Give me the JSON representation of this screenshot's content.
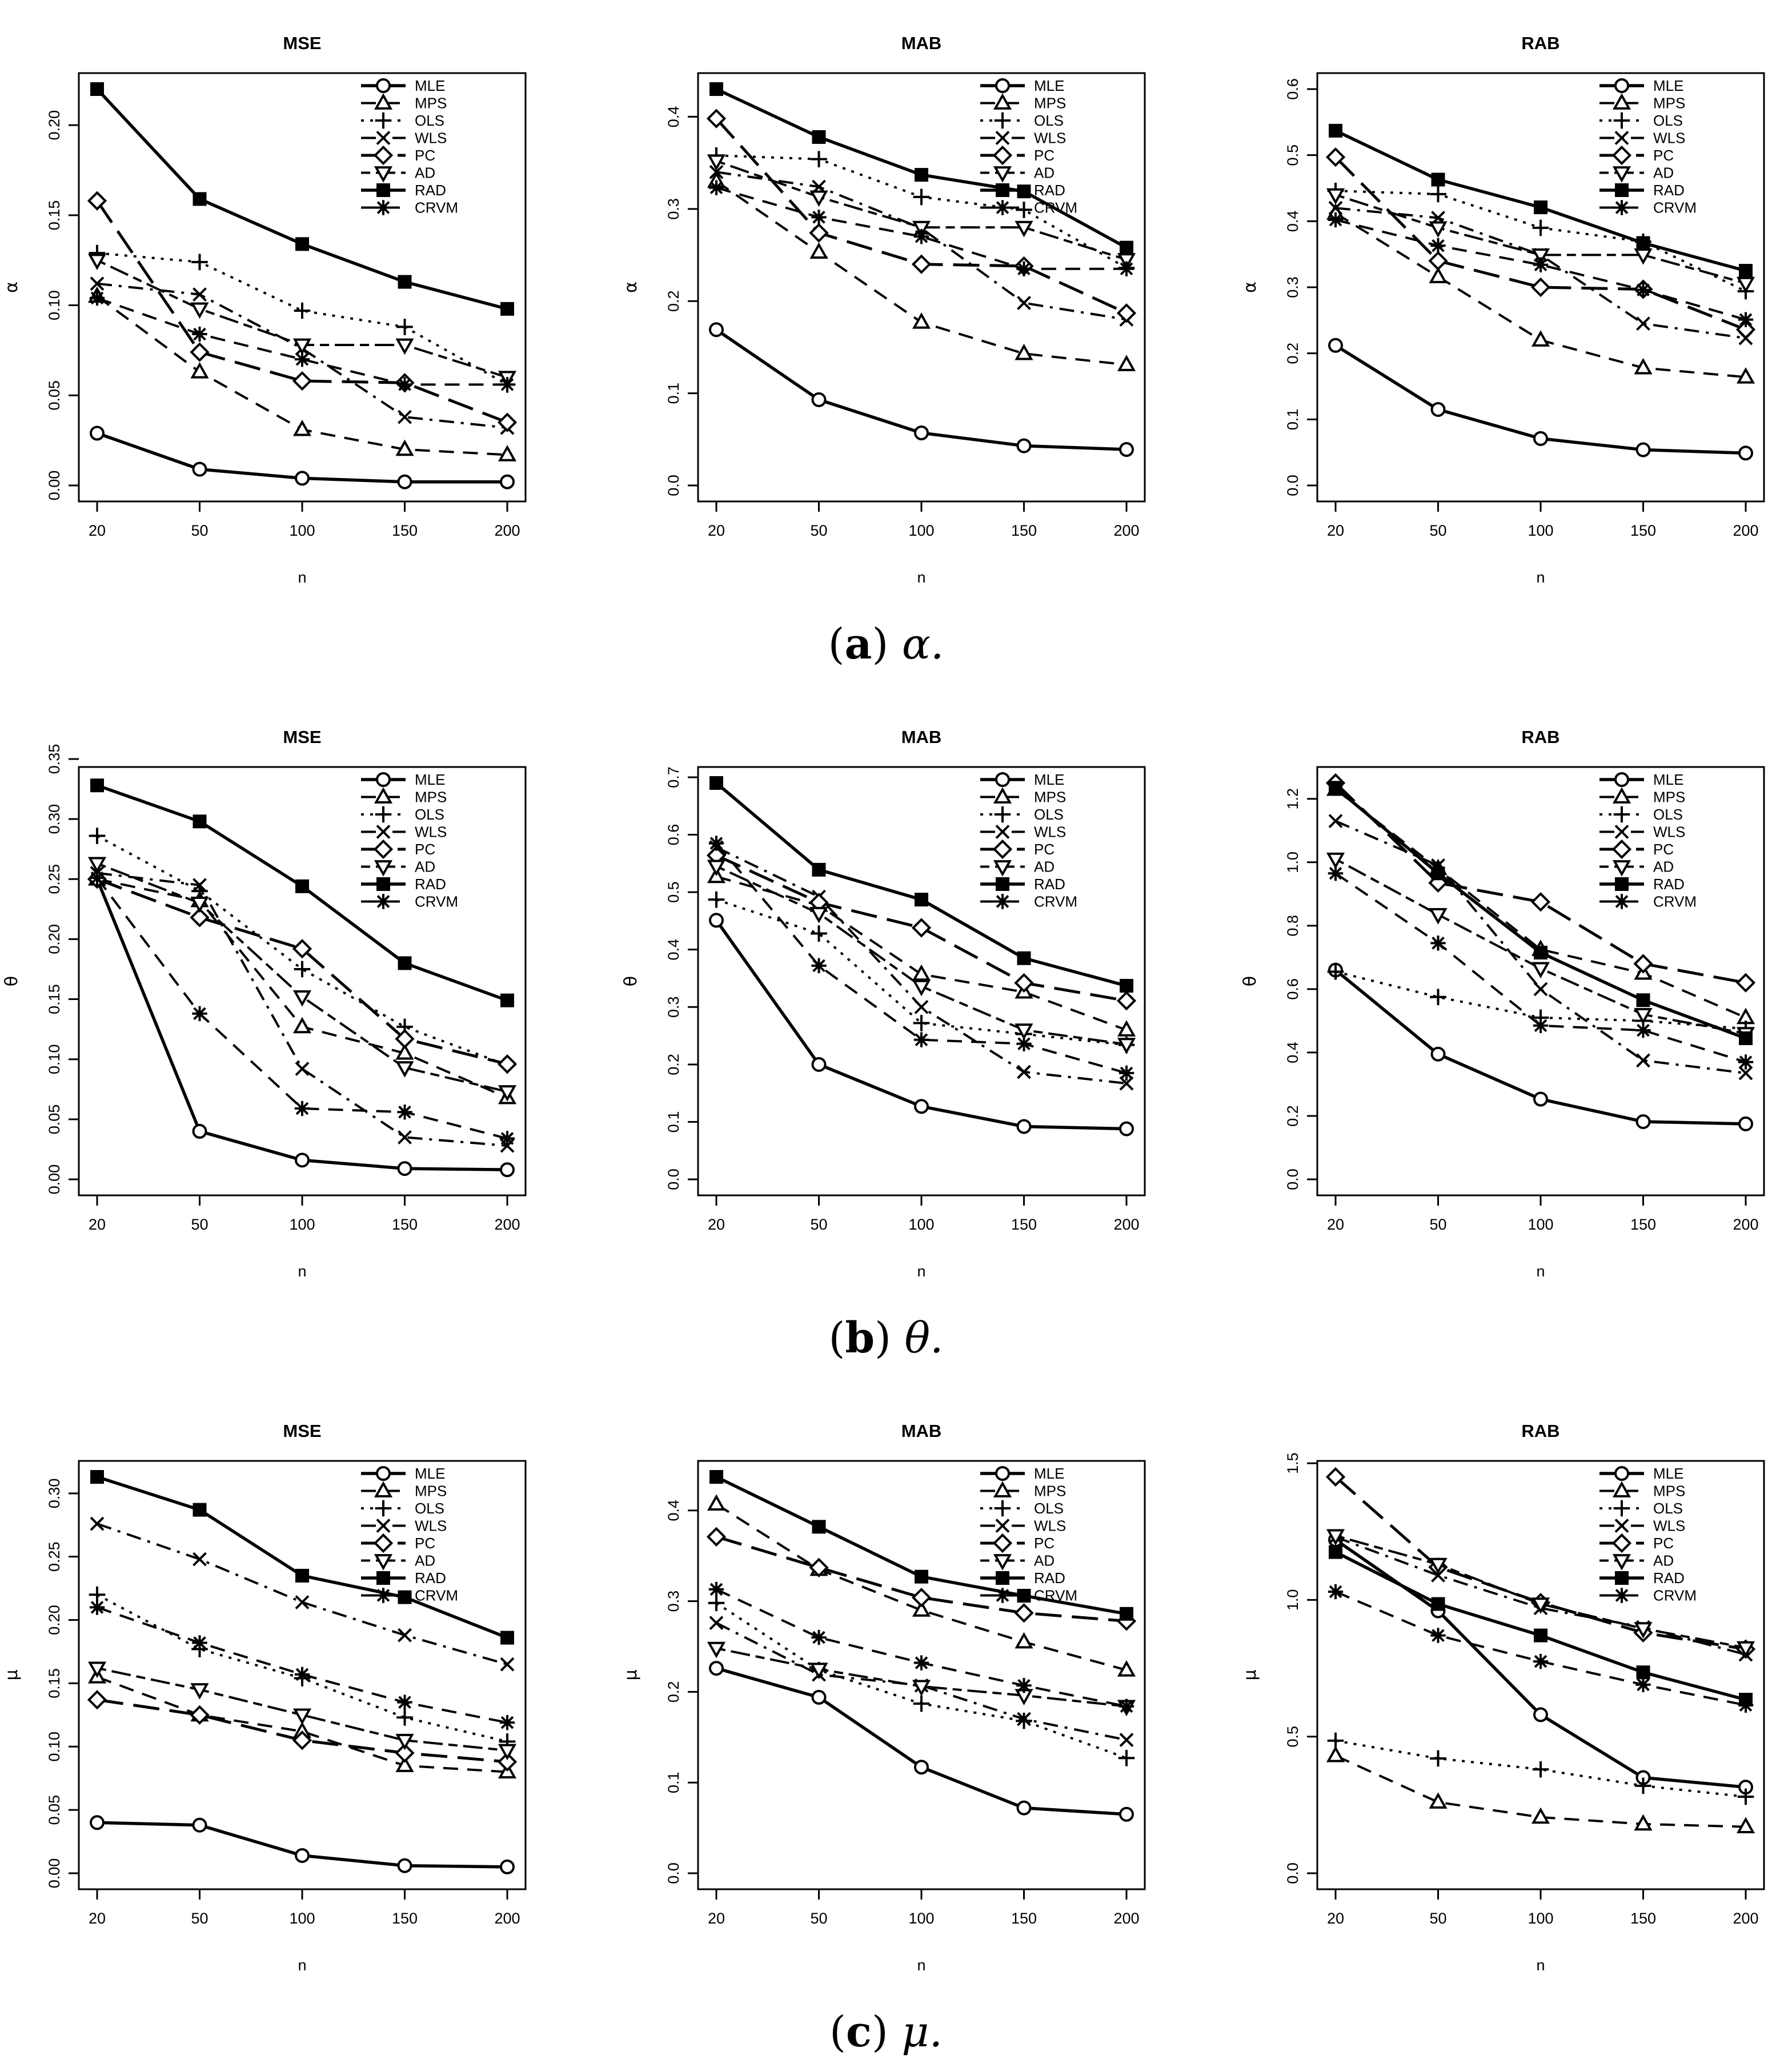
{
  "captions": [
    {
      "letter": "a",
      "symbol": "α."
    },
    {
      "letter": "b",
      "symbol": "θ."
    },
    {
      "letter": "c",
      "symbol": "μ."
    }
  ],
  "legend": [
    "MLE",
    "MPS",
    "OLS",
    "WLS",
    "PC",
    "AD",
    "RAD",
    "CRVM"
  ],
  "series_style": {
    "MLE": {
      "marker": "circle",
      "dash": "solid",
      "width": 5.5
    },
    "MPS": {
      "marker": "triangle",
      "dash": "dashed",
      "width": 4
    },
    "OLS": {
      "marker": "plus",
      "dash": "dotted",
      "width": 4
    },
    "WLS": {
      "marker": "cross",
      "dash": "dashdot",
      "width": 4
    },
    "PC": {
      "marker": "diamond",
      "dash": "longdash",
      "width": 5
    },
    "AD": {
      "marker": "triangle-down",
      "dash": "twodash",
      "width": 4
    },
    "RAD": {
      "marker": "square",
      "dash": "solid",
      "width": 5.5
    },
    "CRVM": {
      "marker": "asterisk",
      "dash": "dashed",
      "width": 4
    }
  },
  "chart_data": [
    {
      "type": "line",
      "title": "MSE",
      "xlabel": "n",
      "ylabel": "α",
      "x": [
        20,
        50,
        100,
        150,
        200
      ],
      "ylim": [
        0,
        0.22
      ],
      "yticks": [
        "0.00",
        "0.05",
        "0.10",
        "0.15",
        "0.20"
      ],
      "ytick_values": [
        0,
        0.05,
        0.1,
        0.15,
        0.2
      ],
      "series": [
        {
          "name": "MLE",
          "values": [
            0.029,
            0.009,
            0.004,
            0.002,
            0.002
          ]
        },
        {
          "name": "MPS",
          "values": [
            0.105,
            0.063,
            0.031,
            0.02,
            0.017
          ]
        },
        {
          "name": "OLS",
          "values": [
            0.129,
            0.124,
            0.097,
            0.088,
            0.056
          ]
        },
        {
          "name": "WLS",
          "values": [
            0.112,
            0.106,
            0.076,
            0.038,
            0.032
          ]
        },
        {
          "name": "PC",
          "values": [
            0.158,
            0.074,
            0.058,
            0.057,
            0.035
          ]
        },
        {
          "name": "AD",
          "values": [
            0.125,
            0.098,
            0.078,
            0.078,
            0.06
          ]
        },
        {
          "name": "RAD",
          "values": [
            0.22,
            0.159,
            0.134,
            0.113,
            0.098
          ]
        },
        {
          "name": "CRVM",
          "values": [
            0.104,
            0.084,
            0.07,
            0.056,
            0.056
          ]
        }
      ]
    },
    {
      "type": "line",
      "title": "MAB",
      "xlabel": "n",
      "ylabel": "α",
      "x": [
        20,
        50,
        100,
        150,
        200
      ],
      "ylim": [
        0,
        0.43
      ],
      "yticks": [
        "0.0",
        "0.1",
        "0.2",
        "0.3",
        "0.4"
      ],
      "ytick_values": [
        0,
        0.1,
        0.2,
        0.3,
        0.4
      ],
      "series": [
        {
          "name": "MLE",
          "values": [
            0.169,
            0.093,
            0.057,
            0.043,
            0.039
          ]
        },
        {
          "name": "MPS",
          "values": [
            0.33,
            0.253,
            0.177,
            0.143,
            0.131
          ]
        },
        {
          "name": "OLS",
          "values": [
            0.358,
            0.354,
            0.313,
            0.299,
            0.236
          ]
        },
        {
          "name": "WLS",
          "values": [
            0.34,
            0.324,
            0.279,
            0.198,
            0.18
          ]
        },
        {
          "name": "PC",
          "values": [
            0.398,
            0.274,
            0.24,
            0.238,
            0.187
          ]
        },
        {
          "name": "AD",
          "values": [
            0.352,
            0.313,
            0.28,
            0.28,
            0.245
          ]
        },
        {
          "name": "RAD",
          "values": [
            0.43,
            0.378,
            0.337,
            0.319,
            0.258
          ]
        },
        {
          "name": "CRVM",
          "values": [
            0.323,
            0.291,
            0.27,
            0.235,
            0.235
          ]
        }
      ]
    },
    {
      "type": "line",
      "title": "RAB",
      "xlabel": "n",
      "ylabel": "α",
      "x": [
        20,
        50,
        100,
        150,
        200
      ],
      "ylim": [
        0,
        0.6
      ],
      "yticks": [
        "0.0",
        "0.1",
        "0.2",
        "0.3",
        "0.4",
        "0.5",
        "0.6"
      ],
      "ytick_values": [
        0,
        0.1,
        0.2,
        0.3,
        0.4,
        0.5,
        0.6
      ],
      "series": [
        {
          "name": "MLE",
          "values": [
            0.212,
            0.115,
            0.071,
            0.054,
            0.049
          ]
        },
        {
          "name": "MPS",
          "values": [
            0.412,
            0.316,
            0.22,
            0.178,
            0.164
          ]
        },
        {
          "name": "OLS",
          "values": [
            0.446,
            0.441,
            0.39,
            0.369,
            0.294
          ]
        },
        {
          "name": "WLS",
          "values": [
            0.42,
            0.405,
            0.349,
            0.245,
            0.223
          ]
        },
        {
          "name": "PC",
          "values": [
            0.497,
            0.34,
            0.3,
            0.297,
            0.236
          ]
        },
        {
          "name": "AD",
          "values": [
            0.44,
            0.39,
            0.349,
            0.349,
            0.306
          ]
        },
        {
          "name": "RAD",
          "values": [
            0.537,
            0.463,
            0.421,
            0.367,
            0.325
          ]
        },
        {
          "name": "CRVM",
          "values": [
            0.402,
            0.363,
            0.334,
            0.296,
            0.251
          ]
        }
      ]
    },
    {
      "type": "line",
      "title": "MSE",
      "xlabel": "n",
      "ylabel": "θ",
      "x": [
        20,
        50,
        100,
        150,
        200
      ],
      "ylim": [
        0,
        0.33
      ],
      "yticks": [
        "0.00",
        "0.05",
        "0.10",
        "0.15",
        "0.20",
        "0.25",
        "0.30",
        "0.35"
      ],
      "ytick_values": [
        0,
        0.05,
        0.1,
        0.15,
        0.2,
        0.25,
        0.3,
        0.35
      ],
      "series": [
        {
          "name": "MLE",
          "values": [
            0.25,
            0.04,
            0.016,
            0.009,
            0.008
          ]
        },
        {
          "name": "MPS",
          "values": [
            0.25,
            0.232,
            0.127,
            0.105,
            0.068
          ]
        },
        {
          "name": "OLS",
          "values": [
            0.286,
            0.24,
            0.175,
            0.127,
            0.095
          ]
        },
        {
          "name": "WLS",
          "values": [
            0.255,
            0.245,
            0.092,
            0.035,
            0.028
          ]
        },
        {
          "name": "PC",
          "values": [
            0.25,
            0.218,
            0.192,
            0.117,
            0.096
          ]
        },
        {
          "name": "AD",
          "values": [
            0.263,
            0.23,
            0.152,
            0.093,
            0.073
          ]
        },
        {
          "name": "RAD",
          "values": [
            0.328,
            0.298,
            0.244,
            0.18,
            0.149
          ]
        },
        {
          "name": "CRVM",
          "values": [
            0.251,
            0.138,
            0.059,
            0.056,
            0.034
          ]
        }
      ]
    },
    {
      "type": "line",
      "title": "MAB",
      "xlabel": "n",
      "ylabel": "θ",
      "x": [
        20,
        50,
        100,
        150,
        200
      ],
      "ylim": [
        0,
        0.69
      ],
      "yticks": [
        "0.0",
        "0.1",
        "0.2",
        "0.3",
        "0.4",
        "0.5",
        "0.6",
        "0.7"
      ],
      "ytick_values": [
        0,
        0.1,
        0.2,
        0.3,
        0.4,
        0.5,
        0.6,
        0.7
      ],
      "series": [
        {
          "name": "MLE",
          "values": [
            0.451,
            0.2,
            0.127,
            0.092,
            0.088
          ]
        },
        {
          "name": "MPS",
          "values": [
            0.527,
            0.477,
            0.357,
            0.326,
            0.26
          ]
        },
        {
          "name": "OLS",
          "values": [
            0.487,
            0.428,
            0.272,
            0.253,
            0.234
          ]
        },
        {
          "name": "WLS",
          "values": [
            0.578,
            0.492,
            0.3,
            0.187,
            0.167
          ]
        },
        {
          "name": "PC",
          "values": [
            0.564,
            0.482,
            0.438,
            0.342,
            0.311
          ]
        },
        {
          "name": "AD",
          "values": [
            0.545,
            0.463,
            0.336,
            0.26,
            0.235
          ]
        },
        {
          "name": "RAD",
          "values": [
            0.69,
            0.539,
            0.487,
            0.385,
            0.337
          ]
        },
        {
          "name": "CRVM",
          "values": [
            0.585,
            0.372,
            0.243,
            0.236,
            0.185
          ]
        }
      ]
    },
    {
      "type": "line",
      "title": "RAB",
      "xlabel": "n",
      "ylabel": "θ",
      "x": [
        20,
        50,
        100,
        150,
        200
      ],
      "ylim": [
        0,
        1.25
      ],
      "yticks": [
        "0.0",
        "0.2",
        "0.4",
        "0.6",
        "0.8",
        "1.0",
        "1.2"
      ],
      "ytick_values": [
        0,
        0.2,
        0.4,
        0.6,
        0.8,
        1.0,
        1.2
      ],
      "series": [
        {
          "name": "MLE",
          "values": [
            0.66,
            0.395,
            0.253,
            0.182,
            0.175
          ]
        },
        {
          "name": "MPS",
          "values": [
            1.23,
            0.98,
            0.725,
            0.65,
            0.51
          ]
        },
        {
          "name": "OLS",
          "values": [
            0.655,
            0.575,
            0.51,
            0.5,
            0.475
          ]
        },
        {
          "name": "WLS",
          "values": [
            1.13,
            0.99,
            0.6,
            0.375,
            0.335
          ]
        },
        {
          "name": "PC",
          "values": [
            1.25,
            0.935,
            0.875,
            0.68,
            0.62
          ]
        },
        {
          "name": "AD",
          "values": [
            1.01,
            0.835,
            0.665,
            0.52,
            0.46
          ]
        },
        {
          "name": "RAD",
          "values": [
            1.235,
            0.965,
            0.715,
            0.565,
            0.445
          ]
        },
        {
          "name": "CRVM",
          "values": [
            0.965,
            0.745,
            0.485,
            0.47,
            0.37
          ]
        }
      ]
    },
    {
      "type": "line",
      "title": "MSE",
      "xlabel": "n",
      "ylabel": "μ",
      "x": [
        20,
        50,
        100,
        150,
        200
      ],
      "ylim": [
        0,
        0.313
      ],
      "yticks": [
        "0.00",
        "0.05",
        "0.10",
        "0.15",
        "0.20",
        "0.25",
        "0.30"
      ],
      "ytick_values": [
        0,
        0.05,
        0.1,
        0.15,
        0.2,
        0.25,
        0.3
      ],
      "series": [
        {
          "name": "MLE",
          "values": [
            0.04,
            0.038,
            0.014,
            0.006,
            0.005
          ]
        },
        {
          "name": "MPS",
          "values": [
            0.155,
            0.125,
            0.112,
            0.085,
            0.08
          ]
        },
        {
          "name": "OLS",
          "values": [
            0.22,
            0.177,
            0.154,
            0.123,
            0.104
          ]
        },
        {
          "name": "WLS",
          "values": [
            0.276,
            0.248,
            0.214,
            0.188,
            0.165
          ]
        },
        {
          "name": "PC",
          "values": [
            0.137,
            0.125,
            0.105,
            0.095,
            0.088
          ]
        },
        {
          "name": "AD",
          "values": [
            0.162,
            0.145,
            0.125,
            0.105,
            0.097
          ]
        },
        {
          "name": "RAD",
          "values": [
            0.313,
            0.287,
            0.235,
            0.218,
            0.186
          ]
        },
        {
          "name": "CRVM",
          "values": [
            0.21,
            0.182,
            0.157,
            0.135,
            0.119
          ]
        }
      ]
    },
    {
      "type": "line",
      "title": "MAB",
      "xlabel": "n",
      "ylabel": "μ",
      "x": [
        20,
        50,
        100,
        150,
        200
      ],
      "ylim": [
        0,
        0.437
      ],
      "yticks": [
        "0.0",
        "0.1",
        "0.2",
        "0.3",
        "0.4"
      ],
      "ytick_values": [
        0,
        0.1,
        0.2,
        0.3,
        0.4
      ],
      "series": [
        {
          "name": "MLE",
          "values": [
            0.226,
            0.194,
            0.117,
            0.072,
            0.065
          ]
        },
        {
          "name": "MPS",
          "values": [
            0.407,
            0.335,
            0.29,
            0.255,
            0.224
          ]
        },
        {
          "name": "OLS",
          "values": [
            0.298,
            0.224,
            0.187,
            0.168,
            0.127
          ]
        },
        {
          "name": "WLS",
          "values": [
            0.276,
            0.219,
            0.207,
            0.17,
            0.147
          ]
        },
        {
          "name": "PC",
          "values": [
            0.371,
            0.337,
            0.304,
            0.287,
            0.278
          ]
        },
        {
          "name": "AD",
          "values": [
            0.248,
            0.225,
            0.206,
            0.196,
            0.184
          ]
        },
        {
          "name": "RAD",
          "values": [
            0.437,
            0.382,
            0.327,
            0.306,
            0.286
          ]
        },
        {
          "name": "CRVM",
          "values": [
            0.313,
            0.26,
            0.232,
            0.207,
            0.184
          ]
        }
      ]
    },
    {
      "type": "line",
      "title": "RAB",
      "xlabel": "n",
      "ylabel": "μ",
      "x": [
        20,
        50,
        100,
        150,
        200
      ],
      "ylim": [
        0,
        1.45
      ],
      "yticks": [
        "0.0",
        "0.5",
        "1.0",
        "1.5"
      ],
      "ytick_values": [
        0,
        0.5,
        1.0,
        1.5
      ],
      "series": [
        {
          "name": "MLE",
          "values": [
            1.22,
            0.96,
            0.58,
            0.35,
            0.315
          ]
        },
        {
          "name": "MPS",
          "values": [
            0.43,
            0.26,
            0.205,
            0.18,
            0.17
          ]
        },
        {
          "name": "OLS",
          "values": [
            0.485,
            0.42,
            0.38,
            0.32,
            0.28
          ]
        },
        {
          "name": "WLS",
          "values": [
            1.23,
            1.09,
            0.97,
            0.9,
            0.8
          ]
        },
        {
          "name": "PC",
          "values": [
            1.45,
            1.12,
            0.99,
            0.88,
            0.82
          ]
        },
        {
          "name": "AD",
          "values": [
            1.235,
            1.13,
            0.985,
            0.895,
            0.825
          ]
        },
        {
          "name": "RAD",
          "values": [
            1.175,
            0.985,
            0.87,
            0.735,
            0.635
          ]
        },
        {
          "name": "CRVM",
          "values": [
            1.03,
            0.87,
            0.775,
            0.69,
            0.615
          ]
        }
      ]
    }
  ]
}
